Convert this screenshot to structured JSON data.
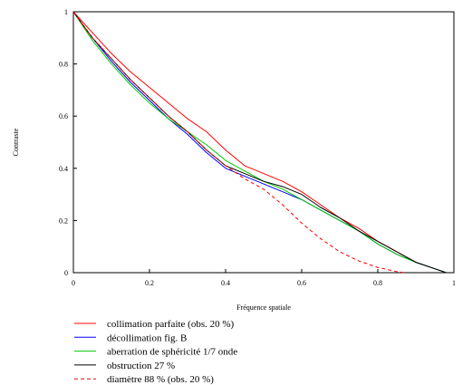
{
  "chart_data": {
    "type": "line",
    "xlabel": "Fréquence spatiale",
    "ylabel": "Contraste",
    "xlim": [
      0,
      1
    ],
    "ylim": [
      0,
      1
    ],
    "xticks": [
      "0",
      "0.2",
      "0.4",
      "0.6",
      "0.8",
      "1"
    ],
    "yticks": [
      "0",
      "0.2",
      "0.4",
      "0.6",
      "0.8",
      "1"
    ],
    "grid": false,
    "legend_position": "bottom-left",
    "series": [
      {
        "name": "collimation parfaite (obs. 20 %)",
        "color": "#ff0000",
        "style": "solid",
        "x": [
          0,
          0.05,
          0.1,
          0.15,
          0.2,
          0.25,
          0.3,
          0.35,
          0.4,
          0.45,
          0.5,
          0.55,
          0.6,
          0.65,
          0.7,
          0.75,
          0.8,
          0.85,
          0.9,
          0.95,
          0.98
        ],
        "y": [
          1.0,
          0.92,
          0.84,
          0.77,
          0.71,
          0.65,
          0.59,
          0.54,
          0.47,
          0.41,
          0.38,
          0.35,
          0.31,
          0.26,
          0.21,
          0.17,
          0.12,
          0.08,
          0.04,
          0.015,
          0.0
        ]
      },
      {
        "name": "décollimation fig. B",
        "color": "#0000ff",
        "style": "solid",
        "x": [
          0,
          0.05,
          0.1,
          0.15,
          0.2,
          0.25,
          0.3,
          0.35,
          0.4,
          0.45,
          0.5,
          0.55,
          0.6,
          0.65,
          0.7,
          0.75,
          0.8,
          0.85,
          0.9,
          0.95,
          0.98
        ],
        "y": [
          1.0,
          0.9,
          0.81,
          0.73,
          0.66,
          0.59,
          0.53,
          0.46,
          0.4,
          0.37,
          0.34,
          0.31,
          0.28,
          0.24,
          0.2,
          0.16,
          0.11,
          0.07,
          0.04,
          0.015,
          0.0
        ]
      },
      {
        "name": "aberration de sphéricité 1/7 onde",
        "color": "#00cc00",
        "style": "solid",
        "x": [
          0,
          0.05,
          0.1,
          0.15,
          0.2,
          0.25,
          0.3,
          0.35,
          0.4,
          0.45,
          0.5,
          0.55,
          0.6,
          0.65,
          0.7,
          0.75,
          0.8,
          0.85,
          0.9,
          0.95,
          0.98
        ],
        "y": [
          1.0,
          0.89,
          0.8,
          0.72,
          0.65,
          0.59,
          0.54,
          0.49,
          0.43,
          0.39,
          0.35,
          0.32,
          0.28,
          0.24,
          0.2,
          0.16,
          0.11,
          0.07,
          0.04,
          0.015,
          0.0
        ]
      },
      {
        "name": "obstruction 27 %",
        "color": "#000000",
        "style": "solid",
        "x": [
          0,
          0.05,
          0.1,
          0.15,
          0.2,
          0.25,
          0.3,
          0.35,
          0.4,
          0.45,
          0.5,
          0.55,
          0.6,
          0.65,
          0.7,
          0.75,
          0.8,
          0.85,
          0.9,
          0.95,
          0.98
        ],
        "y": [
          1.0,
          0.9,
          0.82,
          0.74,
          0.67,
          0.6,
          0.54,
          0.47,
          0.41,
          0.38,
          0.35,
          0.33,
          0.3,
          0.25,
          0.21,
          0.16,
          0.12,
          0.08,
          0.04,
          0.015,
          0.0
        ]
      },
      {
        "name": "diamètre 88 % (obs. 20 %)",
        "color": "#ff0000",
        "style": "dashed",
        "x": [
          0,
          0.05,
          0.1,
          0.15,
          0.2,
          0.25,
          0.3,
          0.35,
          0.4,
          0.45,
          0.5,
          0.55,
          0.6,
          0.65,
          0.7,
          0.75,
          0.8,
          0.85,
          0.87
        ],
        "y": [
          1.0,
          0.9,
          0.82,
          0.74,
          0.67,
          0.6,
          0.54,
          0.47,
          0.41,
          0.36,
          0.32,
          0.26,
          0.19,
          0.13,
          0.08,
          0.045,
          0.02,
          0.004,
          0.0
        ]
      }
    ]
  }
}
